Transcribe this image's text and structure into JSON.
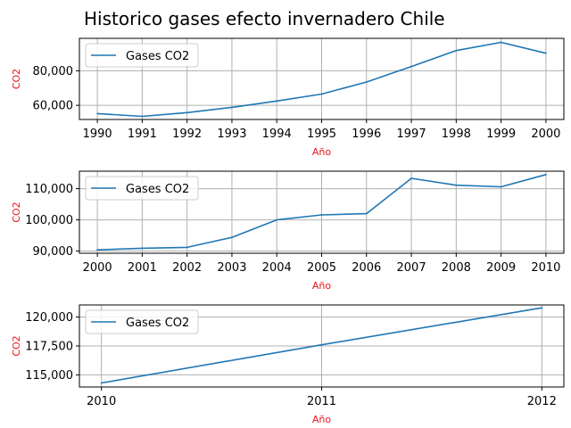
{
  "figure": {
    "title": "Historico gases efecto invernadero Chile",
    "label_color": "#e8141c",
    "line_color": "#1f77b4"
  },
  "chart_data": [
    {
      "type": "line",
      "title": "",
      "xlabel": "Año",
      "ylabel": "CO2",
      "grid": true,
      "legend": "upper-left",
      "xlim": [
        1989.6,
        2000.4
      ],
      "ylim": [
        51800,
        98800
      ],
      "x_ticks": [
        1990,
        1991,
        1992,
        1993,
        1994,
        1995,
        1996,
        1997,
        1998,
        1999,
        2000
      ],
      "y_ticks": [
        60000,
        80000
      ],
      "y_tick_labels": [
        "60,000",
        "80,000"
      ],
      "series": [
        {
          "name": "Gases CO2",
          "x": [
            1990,
            1991,
            1992,
            1993,
            1994,
            1995,
            1996,
            1997,
            1998,
            1999,
            2000
          ],
          "values": [
            55200,
            53600,
            55800,
            58800,
            62500,
            66500,
            73500,
            82500,
            91700,
            96500,
            90200
          ]
        }
      ]
    },
    {
      "type": "line",
      "title": "",
      "xlabel": "Año",
      "ylabel": "CO2",
      "grid": true,
      "legend": "upper-left",
      "xlim": [
        1999.6,
        2010.4
      ],
      "ylim": [
        89300,
        115600
      ],
      "x_ticks": [
        2000,
        2001,
        2002,
        2003,
        2004,
        2005,
        2006,
        2007,
        2008,
        2009,
        2010
      ],
      "y_ticks": [
        90000,
        100000,
        110000
      ],
      "y_tick_labels": [
        "90,000",
        "100,000",
        "110,000"
      ],
      "series": [
        {
          "name": "Gases CO2",
          "x": [
            2000,
            2001,
            2002,
            2003,
            2004,
            2005,
            2006,
            2007,
            2008,
            2009,
            2010
          ],
          "values": [
            90400,
            90900,
            91200,
            94400,
            100000,
            101600,
            102000,
            113300,
            111100,
            110600,
            114500
          ]
        }
      ]
    },
    {
      "type": "line",
      "title": "",
      "xlabel": "Año",
      "ylabel": "CO2",
      "grid": true,
      "legend": "upper-left",
      "xlim": [
        2009.9,
        2012.1
      ],
      "ylim": [
        113950,
        121050
      ],
      "x_ticks": [
        2010,
        2011,
        2012
      ],
      "y_ticks": [
        115000,
        117500,
        120000
      ],
      "y_tick_labels": [
        "115,000",
        "117,500",
        "120,000"
      ],
      "series": [
        {
          "name": "Gases CO2",
          "x": [
            2010,
            2011,
            2012
          ],
          "values": [
            114300,
            117600,
            120800
          ]
        }
      ]
    }
  ]
}
